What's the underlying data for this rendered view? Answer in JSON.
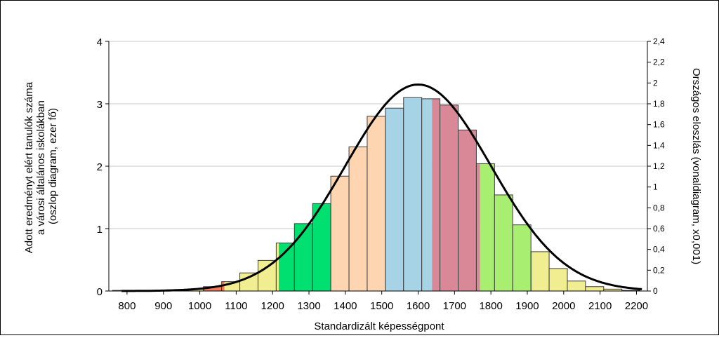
{
  "chart_data": {
    "type": "bar",
    "title": "",
    "xlabel": "Standardizált képességpont",
    "ylabel_left_lines": [
      "Adott eredményt elért tanulók száma",
      "a városi általános iskolákban",
      "(oszlop diagram, ezer fő)"
    ],
    "ylabel_right": "Országos eloszlás (vonaldiagram, x0,001)",
    "xlim": [
      750,
      2230
    ],
    "ylim_left": [
      0,
      4
    ],
    "ylim_right": [
      0,
      2.4
    ],
    "grid": "horizontal",
    "x_ticks": [
      800,
      900,
      1000,
      1100,
      1200,
      1300,
      1400,
      1500,
      1600,
      1700,
      1800,
      1900,
      2000,
      2100,
      2200
    ],
    "y_left_ticks": [
      0,
      1,
      2,
      3,
      4
    ],
    "y_right_ticks": [
      "0",
      "0,2",
      "0,4",
      "0,6",
      "0,8",
      "1",
      "1,2",
      "1,4",
      "1,6",
      "1,8",
      "2",
      "2,2",
      "2,4"
    ],
    "bar_width": 50,
    "bars": [
      {
        "x_start": 760,
        "value": 0.01,
        "segments": [
          {
            "to": 810,
            "color": "#f0ee90"
          }
        ]
      },
      {
        "x_start": 810,
        "value": 0.01,
        "segments": [
          {
            "to": 860,
            "color": "#f0ee90"
          }
        ]
      },
      {
        "x_start": 860,
        "value": 0.01,
        "segments": [
          {
            "to": 910,
            "color": "#f0ee90"
          }
        ]
      },
      {
        "x_start": 910,
        "value": 0.02,
        "segments": [
          {
            "to": 960,
            "color": "#f0ee90"
          }
        ]
      },
      {
        "x_start": 960,
        "value": 0.03,
        "segments": [
          {
            "to": 1010,
            "color": "#f0ee90"
          }
        ]
      },
      {
        "x_start": 1010,
        "value": 0.07,
        "segments": [
          {
            "to": 1060,
            "color": "#f47c5c"
          }
        ]
      },
      {
        "x_start": 1060,
        "value": 0.15,
        "segments": [
          {
            "to": 1068,
            "color": "#f47c5c"
          },
          {
            "to": 1110,
            "color": "#f0ee90"
          }
        ]
      },
      {
        "x_start": 1110,
        "value": 0.29,
        "segments": [
          {
            "to": 1160,
            "color": "#f0ee90"
          }
        ]
      },
      {
        "x_start": 1160,
        "value": 0.49,
        "segments": [
          {
            "to": 1210,
            "color": "#f0ee90"
          }
        ]
      },
      {
        "x_start": 1210,
        "value": 0.77,
        "segments": [
          {
            "to": 1217,
            "color": "#f0ee90"
          },
          {
            "to": 1260,
            "color": "#00e070"
          }
        ]
      },
      {
        "x_start": 1260,
        "value": 1.08,
        "segments": [
          {
            "to": 1310,
            "color": "#00e070"
          }
        ]
      },
      {
        "x_start": 1310,
        "value": 1.4,
        "segments": [
          {
            "to": 1360,
            "color": "#00e070"
          }
        ]
      },
      {
        "x_start": 1360,
        "value": 1.84,
        "segments": [
          {
            "to": 1410,
            "color": "#fdd5b1"
          }
        ]
      },
      {
        "x_start": 1410,
        "value": 2.31,
        "segments": [
          {
            "to": 1460,
            "color": "#fdd5b1"
          }
        ]
      },
      {
        "x_start": 1460,
        "value": 2.8,
        "segments": [
          {
            "to": 1510,
            "color": "#fdd5b1"
          }
        ]
      },
      {
        "x_start": 1510,
        "value": 2.93,
        "segments": [
          {
            "to": 1560,
            "color": "#a6d4e6"
          }
        ]
      },
      {
        "x_start": 1560,
        "value": 3.1,
        "segments": [
          {
            "to": 1610,
            "color": "#a6d4e6"
          }
        ]
      },
      {
        "x_start": 1610,
        "value": 3.08,
        "segments": [
          {
            "to": 1638,
            "color": "#a6d4e6"
          },
          {
            "to": 1660,
            "color": "#d98898"
          }
        ]
      },
      {
        "x_start": 1660,
        "value": 2.98,
        "segments": [
          {
            "to": 1710,
            "color": "#d98898"
          }
        ]
      },
      {
        "x_start": 1710,
        "value": 2.58,
        "segments": [
          {
            "to": 1760,
            "color": "#d98898"
          }
        ]
      },
      {
        "x_start": 1760,
        "value": 2.04,
        "segments": [
          {
            "to": 1770,
            "color": "#d98898"
          },
          {
            "to": 1810,
            "color": "#a8ee70"
          }
        ]
      },
      {
        "x_start": 1810,
        "value": 1.54,
        "segments": [
          {
            "to": 1860,
            "color": "#a8ee70"
          }
        ]
      },
      {
        "x_start": 1860,
        "value": 1.06,
        "segments": [
          {
            "to": 1910,
            "color": "#a8ee70"
          }
        ]
      },
      {
        "x_start": 1910,
        "value": 0.63,
        "segments": [
          {
            "to": 1914,
            "color": "#a8ee70"
          },
          {
            "to": 1960,
            "color": "#f0ee90"
          }
        ]
      },
      {
        "x_start": 1960,
        "value": 0.36,
        "segments": [
          {
            "to": 2010,
            "color": "#f0ee90"
          }
        ]
      },
      {
        "x_start": 2010,
        "value": 0.16,
        "segments": [
          {
            "to": 2060,
            "color": "#f0ee90"
          }
        ]
      },
      {
        "x_start": 2060,
        "value": 0.07,
        "segments": [
          {
            "to": 2110,
            "color": "#f0ee90"
          }
        ]
      },
      {
        "x_start": 2110,
        "value": 0.03,
        "segments": [
          {
            "to": 2160,
            "color": "#f0ee90"
          }
        ]
      },
      {
        "x_start": 2160,
        "value": 0.01,
        "segments": [
          {
            "to": 2210,
            "color": "#f0ee90"
          }
        ]
      }
    ],
    "line_series": {
      "mean": 1600,
      "sd": 200,
      "peak": 1.985,
      "x_range": [
        785,
        2215
      ],
      "color": "#000000"
    }
  }
}
